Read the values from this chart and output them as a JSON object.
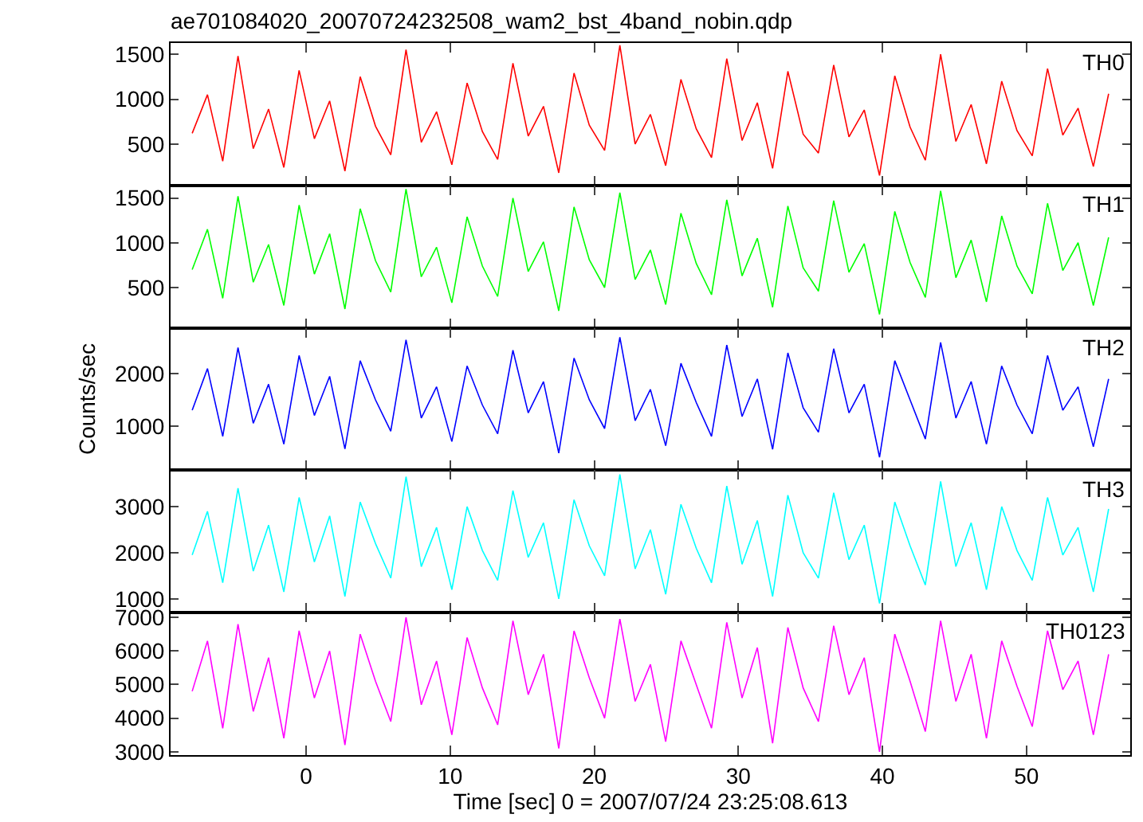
{
  "chart_data": [
    {
      "type": "line",
      "title": "ae701084020_20070724232508_wam2_bst_4band_nobin.qdp",
      "legend": false,
      "tick_labels": "y",
      "x": [
        -7.9,
        -6.84,
        -5.78,
        -4.72,
        -3.66,
        -2.6,
        -1.54,
        -0.48,
        0.58,
        1.64,
        2.7,
        3.76,
        4.82,
        5.88,
        6.94,
        8.0,
        9.06,
        10.12,
        11.18,
        12.24,
        13.3,
        14.36,
        15.42,
        16.48,
        17.54,
        18.6,
        19.66,
        20.72,
        21.78,
        22.84,
        23.9,
        24.96,
        26.02,
        27.08,
        28.14,
        29.2,
        30.26,
        31.32,
        32.38,
        33.44,
        34.5,
        35.56,
        36.62,
        37.68,
        38.74,
        39.8,
        40.86,
        41.92,
        42.98,
        44.04,
        45.1,
        46.16,
        47.22,
        48.28,
        49.34,
        50.4,
        51.46,
        52.52,
        53.58,
        54.64,
        55.7
      ],
      "xlim": [
        -9.4,
        57.2
      ],
      "xticks": [
        0,
        10,
        20,
        30,
        40,
        50
      ],
      "ylim": [
        40,
        1625
      ],
      "yticks": [
        500,
        1000,
        1500
      ],
      "series": [
        {
          "name": "TH0",
          "color": "#ff0000",
          "values": [
            620,
            1050,
            310,
            1480,
            450,
            890,
            240,
            1320,
            560,
            980,
            200,
            1250,
            700,
            380,
            1550,
            520,
            860,
            270,
            1180,
            640,
            330,
            1400,
            590,
            920,
            180,
            1290,
            710,
            430,
            1600,
            500,
            830,
            260,
            1220,
            670,
            350,
            1450,
            540,
            960,
            230,
            1310,
            610,
            400,
            1380,
            580,
            880,
            150,
            1260,
            690,
            320,
            1500,
            530,
            940,
            280,
            1200,
            650,
            370,
            1340,
            600,
            900,
            250,
            1060
          ]
        }
      ]
    },
    {
      "type": "line",
      "legend": false,
      "tick_labels": "y",
      "x": [
        -7.9,
        -6.84,
        -5.78,
        -4.72,
        -3.66,
        -2.6,
        -1.54,
        -0.48,
        0.58,
        1.64,
        2.7,
        3.76,
        4.82,
        5.88,
        6.94,
        8.0,
        9.06,
        10.12,
        11.18,
        12.24,
        13.3,
        14.36,
        15.42,
        16.48,
        17.54,
        18.6,
        19.66,
        20.72,
        21.78,
        22.84,
        23.9,
        24.96,
        26.02,
        27.08,
        28.14,
        29.2,
        30.26,
        31.32,
        32.38,
        33.44,
        34.5,
        35.56,
        36.62,
        37.68,
        38.74,
        39.8,
        40.86,
        41.92,
        42.98,
        44.04,
        45.1,
        46.16,
        47.22,
        48.28,
        49.34,
        50.4,
        51.46,
        52.52,
        53.58,
        54.64,
        55.7
      ],
      "xlim": [
        -9.4,
        57.2
      ],
      "xticks": [
        0,
        10,
        20,
        30,
        40,
        50
      ],
      "ylim": [
        50,
        1640
      ],
      "yticks": [
        500,
        1000,
        1500
      ],
      "series": [
        {
          "name": "TH1",
          "color": "#00ff00",
          "values": [
            700,
            1150,
            380,
            1520,
            560,
            980,
            300,
            1420,
            650,
            1100,
            260,
            1380,
            800,
            450,
            1600,
            620,
            950,
            330,
            1290,
            740,
            400,
            1500,
            680,
            1010,
            240,
            1400,
            810,
            500,
            1560,
            590,
            920,
            310,
            1330,
            770,
            420,
            1480,
            630,
            1050,
            280,
            1410,
            720,
            460,
            1470,
            670,
            990,
            200,
            1350,
            780,
            390,
            1580,
            610,
            1030,
            340,
            1300,
            740,
            430,
            1440,
            690,
            1000,
            300,
            1060
          ]
        }
      ]
    },
    {
      "type": "line",
      "ylabel": "Counts/sec",
      "legend": false,
      "tick_labels": "y",
      "x": [
        -7.9,
        -6.84,
        -5.78,
        -4.72,
        -3.66,
        -2.6,
        -1.54,
        -0.48,
        0.58,
        1.64,
        2.7,
        3.76,
        4.82,
        5.88,
        6.94,
        8.0,
        9.06,
        10.12,
        11.18,
        12.24,
        13.3,
        14.36,
        15.42,
        16.48,
        17.54,
        18.6,
        19.66,
        20.72,
        21.78,
        22.84,
        23.9,
        24.96,
        26.02,
        27.08,
        28.14,
        29.2,
        30.26,
        31.32,
        32.38,
        33.44,
        34.5,
        35.56,
        36.62,
        37.68,
        38.74,
        39.8,
        40.86,
        41.92,
        42.98,
        44.04,
        45.1,
        46.16,
        47.22,
        48.28,
        49.34,
        50.4,
        51.46,
        52.52,
        53.58,
        54.64,
        55.7
      ],
      "xlim": [
        -9.4,
        57.2
      ],
      "xticks": [
        0,
        10,
        20,
        30,
        40,
        50
      ],
      "ylim": [
        150,
        2880
      ],
      "yticks": [
        1000,
        2000
      ],
      "series": [
        {
          "name": "TH2",
          "color": "#0000ff",
          "values": [
            1300,
            2100,
            800,
            2500,
            1050,
            1800,
            650,
            2350,
            1200,
            1950,
            560,
            2250,
            1500,
            900,
            2650,
            1150,
            1750,
            700,
            2150,
            1400,
            850,
            2450,
            1250,
            1850,
            480,
            2300,
            1500,
            950,
            2700,
            1100,
            1700,
            620,
            2200,
            1450,
            800,
            2550,
            1180,
            1900,
            550,
            2400,
            1350,
            880,
            2480,
            1250,
            1800,
            400,
            2250,
            1500,
            750,
            2600,
            1150,
            1850,
            650,
            2150,
            1400,
            850,
            2350,
            1300,
            1750,
            600,
            1900
          ]
        }
      ]
    },
    {
      "type": "line",
      "legend": false,
      "tick_labels": "y",
      "x": [
        -7.9,
        -6.84,
        -5.78,
        -4.72,
        -3.66,
        -2.6,
        -1.54,
        -0.48,
        0.58,
        1.64,
        2.7,
        3.76,
        4.82,
        5.88,
        6.94,
        8.0,
        9.06,
        10.12,
        11.18,
        12.24,
        13.3,
        14.36,
        15.42,
        16.48,
        17.54,
        18.6,
        19.66,
        20.72,
        21.78,
        22.84,
        23.9,
        24.96,
        26.02,
        27.08,
        28.14,
        29.2,
        30.26,
        31.32,
        32.38,
        33.44,
        34.5,
        35.56,
        36.62,
        37.68,
        38.74,
        39.8,
        40.86,
        41.92,
        42.98,
        44.04,
        45.1,
        46.16,
        47.22,
        48.28,
        49.34,
        50.4,
        51.46,
        52.52,
        53.58,
        54.64,
        55.7
      ],
      "xlim": [
        -9.4,
        57.2
      ],
      "xticks": [
        0,
        10,
        20,
        30,
        40,
        50
      ],
      "ylim": [
        700,
        3790
      ],
      "yticks": [
        1000,
        2000,
        3000
      ],
      "series": [
        {
          "name": "TH3",
          "color": "#00ffff",
          "values": [
            1950,
            2900,
            1350,
            3400,
            1600,
            2600,
            1150,
            3200,
            1800,
            2800,
            1050,
            3100,
            2200,
            1450,
            3650,
            1700,
            2550,
            1200,
            3000,
            2050,
            1400,
            3350,
            1900,
            2650,
            1000,
            3150,
            2150,
            1500,
            3700,
            1650,
            2500,
            1100,
            3050,
            2100,
            1350,
            3450,
            1750,
            2700,
            1050,
            3250,
            2000,
            1450,
            3300,
            1850,
            2600,
            900,
            3100,
            2150,
            1300,
            3550,
            1700,
            2650,
            1200,
            3000,
            2050,
            1400,
            3200,
            1950,
            2550,
            1150,
            2950
          ]
        }
      ]
    },
    {
      "type": "line",
      "xlabel": "Time [sec] 0 = 2007/07/24 23:25:08.613",
      "legend": false,
      "x": [
        -7.9,
        -6.84,
        -5.78,
        -4.72,
        -3.66,
        -2.6,
        -1.54,
        -0.48,
        0.58,
        1.64,
        2.7,
        3.76,
        4.82,
        5.88,
        6.94,
        8.0,
        9.06,
        10.12,
        11.18,
        12.24,
        13.3,
        14.36,
        15.42,
        16.48,
        17.54,
        18.6,
        19.66,
        20.72,
        21.78,
        22.84,
        23.9,
        24.96,
        26.02,
        27.08,
        28.14,
        29.2,
        30.26,
        31.32,
        32.38,
        33.44,
        34.5,
        35.56,
        36.62,
        37.68,
        38.74,
        39.8,
        40.86,
        41.92,
        42.98,
        44.04,
        45.1,
        46.16,
        47.22,
        48.28,
        49.34,
        50.4,
        51.46,
        52.52,
        53.58,
        54.64,
        55.7
      ],
      "xlim": [
        -9.4,
        57.2
      ],
      "xticks": [
        0,
        10,
        20,
        30,
        40,
        50
      ],
      "ylim": [
        2900,
        7140
      ],
      "yticks": [
        3000,
        4000,
        5000,
        6000,
        7000
      ],
      "series": [
        {
          "name": "TH0123",
          "color": "#ff00ff",
          "values": [
            4800,
            6300,
            3700,
            6800,
            4200,
            5800,
            3400,
            6600,
            4600,
            6000,
            3200,
            6500,
            5100,
            3900,
            7000,
            4400,
            5700,
            3500,
            6400,
            4900,
            3800,
            6900,
            4700,
            5900,
            3100,
            6600,
            5200,
            4000,
            6950,
            4500,
            5600,
            3300,
            6300,
            5000,
            3700,
            6850,
            4600,
            6100,
            3250,
            6700,
            4900,
            3900,
            6750,
            4700,
            5800,
            3000,
            6500,
            5100,
            3600,
            6900,
            4500,
            5900,
            3400,
            6300,
            4950,
            3750,
            6600,
            4850,
            5700,
            3500,
            5900
          ]
        }
      ]
    }
  ]
}
